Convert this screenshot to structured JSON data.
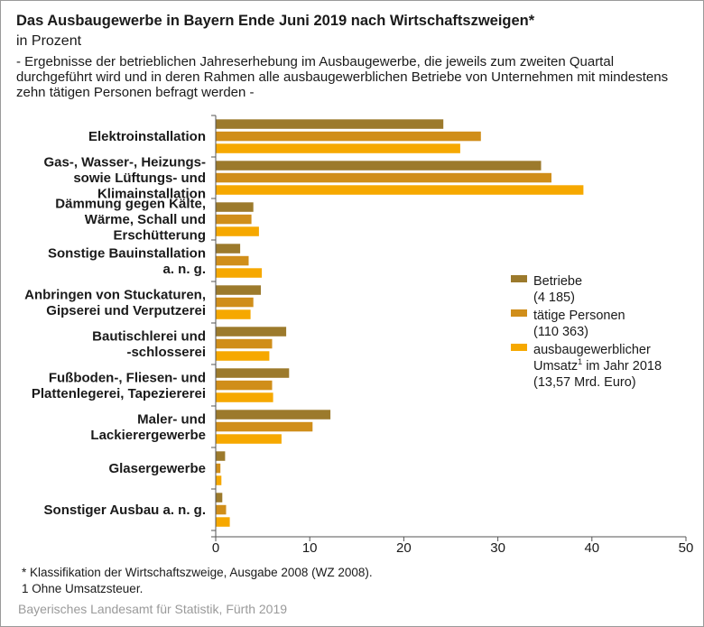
{
  "header": {
    "title": "Das Ausbaugewerbe in Bayern Ende Juni 2019 nach Wirtschaftszweigen*",
    "subtitle": "in Prozent",
    "description": "- Ergebnisse der betrieblichen Jahreserhebung im Ausbaugewerbe, die jeweils zum zweiten Quartal durchgeführt wird und in deren Rahmen alle ausbaugewerblichen Betriebe von Unternehmen mit mindestens zehn tätigen Personen befragt werden -"
  },
  "chart_data": {
    "type": "bar",
    "orientation": "horizontal",
    "categories": [
      [
        "Elektroinstallation"
      ],
      [
        "Gas-, Wasser-, Heizungs-",
        "sowie Lüftungs- und",
        "Klimainstallation"
      ],
      [
        "Dämmung gegen Kälte,",
        "Wärme, Schall und",
        "Erschütterung"
      ],
      [
        "Sonstige Bauinstallation",
        "a. n. g."
      ],
      [
        "Anbringen von Stuckaturen,",
        "Gipserei und Verputzerei"
      ],
      [
        "Bautischlerei und",
        "-schlosserei"
      ],
      [
        "Fußboden-, Fliesen- und",
        "Plattenlegerei, Tapeziererei"
      ],
      [
        "Maler- und",
        "Lackierergewerbe"
      ],
      [
        "Glasergewerbe"
      ],
      [
        "Sonstiger Ausbau a. n. g."
      ]
    ],
    "series": [
      {
        "name": "Betriebe (4 185)",
        "legend_lines": [
          "Betriebe",
          "(4 185)"
        ],
        "sup": "",
        "color": "#9c7a2c",
        "values": [
          24.2,
          34.6,
          4.0,
          2.6,
          4.8,
          7.5,
          7.8,
          12.2,
          1.0,
          0.7
        ]
      },
      {
        "name": "tätige Personen (110 363)",
        "legend_lines": [
          "tätige Personen",
          "(110 363)"
        ],
        "sup": "",
        "color": "#d08e1a",
        "values": [
          28.2,
          35.7,
          3.8,
          3.5,
          4.0,
          6.0,
          6.0,
          10.3,
          0.5,
          1.1
        ]
      },
      {
        "name": "ausbaugewerblicher Umsatz1 im Jahr 2018 (13,57 Mrd. Euro)",
        "legend_lines": [
          "ausbaugewerblicher",
          "Umsatz|1| im Jahr 2018",
          "(13,57 Mrd. Euro)"
        ],
        "color": "#f6a800",
        "values": [
          26.0,
          39.1,
          4.6,
          4.9,
          3.7,
          5.7,
          6.1,
          7.0,
          0.6,
          1.5
        ]
      }
    ],
    "xlim": [
      0,
      50
    ],
    "xticks": [
      "0",
      "10",
      "20",
      "30",
      "40",
      "50"
    ],
    "grid": false,
    "legend_position": "right"
  },
  "footnotes": {
    "star": "*  Klassifikation der Wirtschaftszweige, Ausgabe 2008 (WZ 2008).",
    "one": "1  Ohne Umsatzsteuer."
  },
  "source": "Bayerisches Landesamt für Statistik, Fürth 2019"
}
